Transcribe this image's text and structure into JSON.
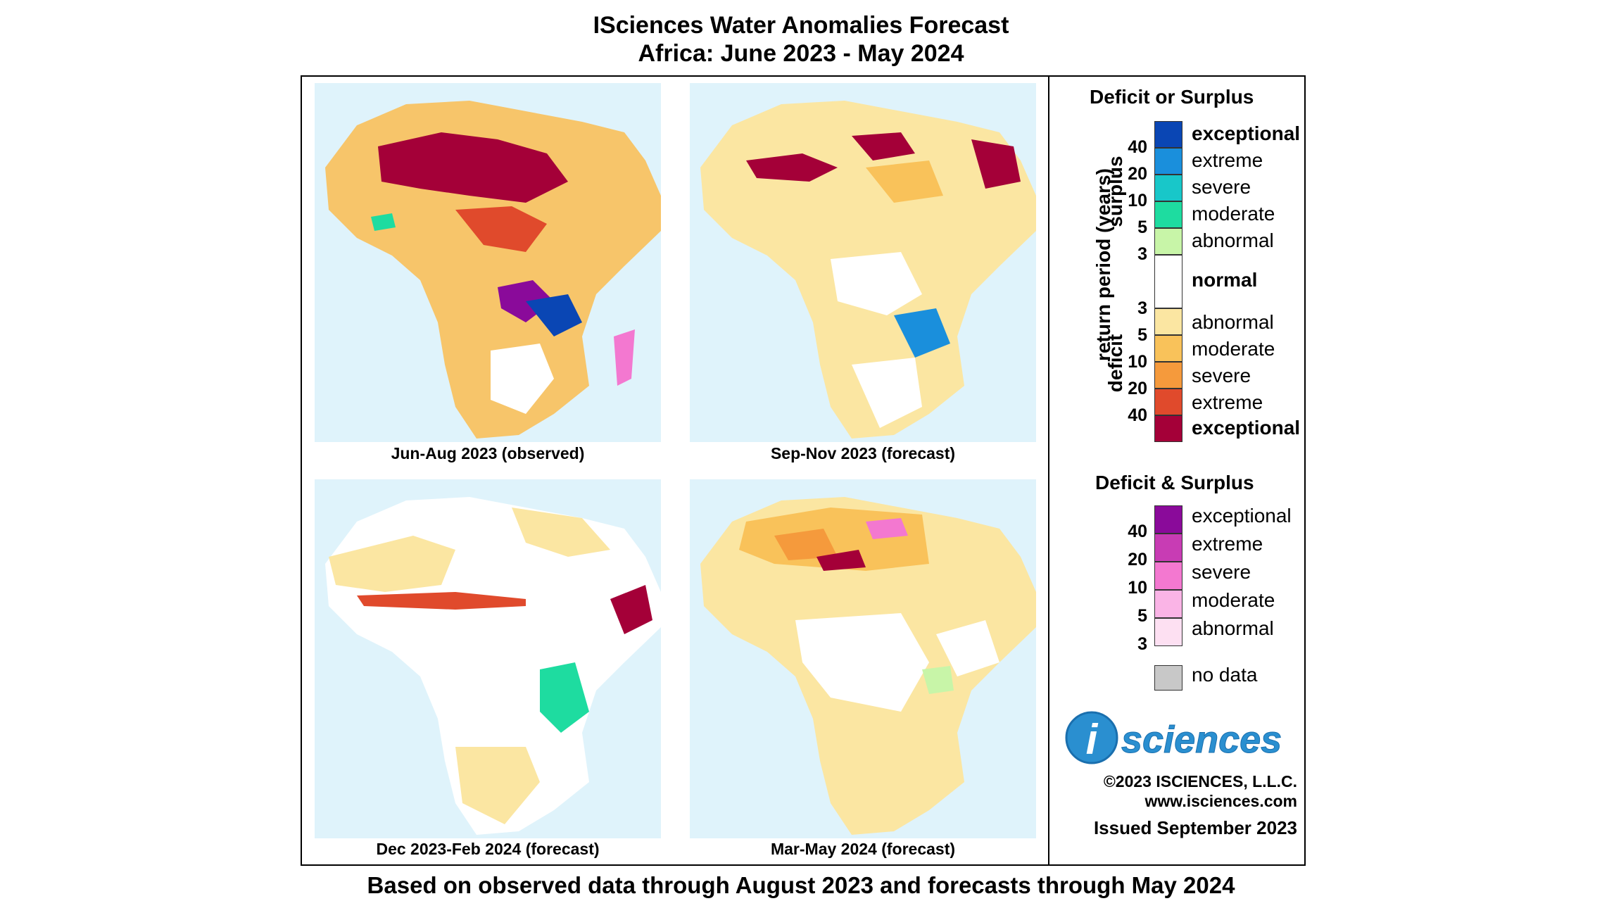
{
  "title_line1": "ISciences Water Anomalies Forecast",
  "title_line2": "Africa: June 2023 - May 2024",
  "footer": "Based on observed data through August 2023 and forecasts through May 2024",
  "panels": [
    {
      "label": "Jun-Aug 2023 (observed)"
    },
    {
      "label": "Sep-Nov 2023 (forecast)"
    },
    {
      "label": "Dec 2023-Feb 2024 (forecast)"
    },
    {
      "label": "Mar-May 2024 (forecast)"
    }
  ],
  "legend": {
    "section1_title": "Deficit or Surplus",
    "axis_label": "return period (years)",
    "surplus_label": "surplus",
    "deficit_label": "deficit",
    "surplus": [
      {
        "label": "exceptional",
        "color": "#0a46b4"
      },
      {
        "label": "extreme",
        "color": "#1a8fdc"
      },
      {
        "label": "severe",
        "color": "#18c7c9"
      },
      {
        "label": "moderate",
        "color": "#1edca0"
      },
      {
        "label": "abnormal",
        "color": "#c8f5a8"
      }
    ],
    "normal": {
      "label": "normal",
      "color": "#ffffff"
    },
    "deficit": [
      {
        "label": "abnormal",
        "color": "#fbe6a2"
      },
      {
        "label": "moderate",
        "color": "#f9c25a"
      },
      {
        "label": "severe",
        "color": "#f59a3c"
      },
      {
        "label": "extreme",
        "color": "#e04a2c"
      },
      {
        "label": "exceptional",
        "color": "#a40038"
      }
    ],
    "surplus_numbers": [
      "40",
      "20",
      "10",
      "5",
      "3"
    ],
    "deficit_numbers": [
      "3",
      "5",
      "10",
      "20",
      "40"
    ],
    "section2_title": "Deficit & Surplus",
    "both": [
      {
        "label": "exceptional",
        "color": "#8a0a9a"
      },
      {
        "label": "extreme",
        "color": "#c83cb4"
      },
      {
        "label": "severe",
        "color": "#f378d0"
      },
      {
        "label": "moderate",
        "color": "#fab4e6"
      },
      {
        "label": "abnormal",
        "color": "#fde0f2"
      }
    ],
    "both_numbers": [
      "40",
      "20",
      "10",
      "5",
      "3"
    ],
    "nodata": {
      "label": "no data",
      "color": "#c8c8c8"
    }
  },
  "logo_text": "sciences",
  "logo_i": "i",
  "copyright": "©2023 ISCIENCES, L.L.C.",
  "website": "www.isciences.com",
  "issued": "Issued September 2023"
}
